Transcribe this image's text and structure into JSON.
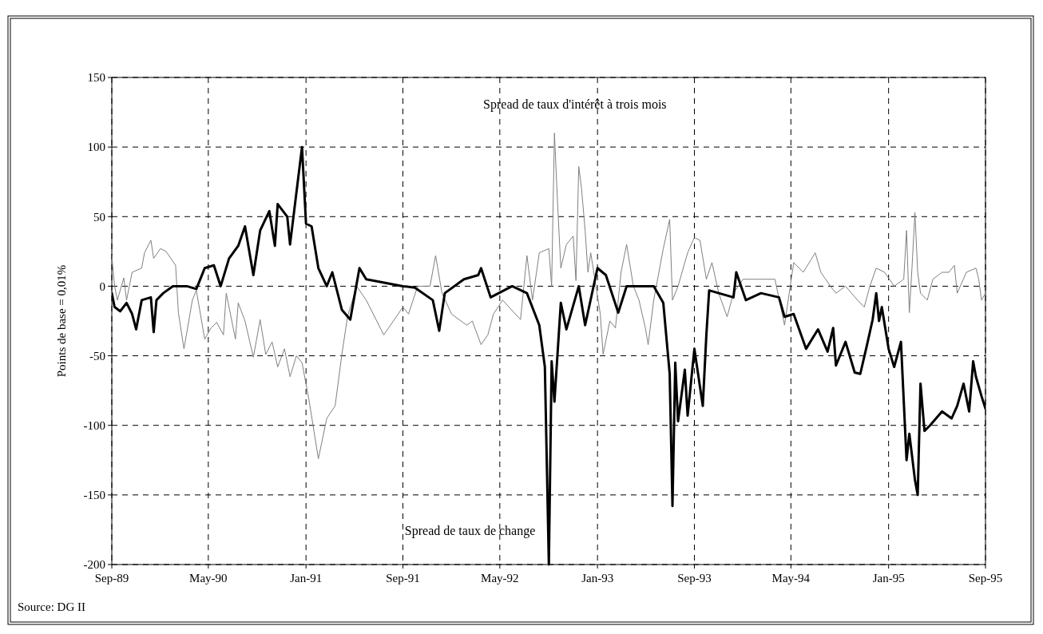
{
  "chart_data": {
    "type": "line",
    "ylabel": "Points de base = 0,01%",
    "annotations": [
      "Source: DG II"
    ],
    "xlim": [
      "1989-09-01",
      "1995-09-01"
    ],
    "xticks": [
      {
        "value": "1989-09-01",
        "label": "Sep-89"
      },
      {
        "value": "1990-05-01",
        "label": "May-90"
      },
      {
        "value": "1991-01-01",
        "label": "Jan-91"
      },
      {
        "value": "1991-09-01",
        "label": "Sep-91"
      },
      {
        "value": "1992-05-01",
        "label": "May-92"
      },
      {
        "value": "1993-01-01",
        "label": "Jan-93"
      },
      {
        "value": "1993-09-01",
        "label": "Sep-93"
      },
      {
        "value": "1994-05-01",
        "label": "May-94"
      },
      {
        "value": "1995-01-01",
        "label": "Jan-95"
      },
      {
        "value": "1995-09-01",
        "label": "Sep-95"
      }
    ],
    "ylim": [
      -200,
      150
    ],
    "yticks": [
      -200,
      -150,
      -100,
      -50,
      0,
      50,
      100,
      150
    ],
    "grid": true,
    "line_style": "solid",
    "series": [
      {
        "name": "Spread de taux d'intérêt à trois mois",
        "color": "#808080",
        "x": [
          "1989-09-01",
          "1989-09-08",
          "1989-09-15",
          "1989-10-01",
          "1989-10-08",
          "1989-10-22",
          "1989-11-15",
          "1989-11-22",
          "1989-12-08",
          "1989-12-15",
          "1990-01-01",
          "1990-01-15",
          "1990-02-08",
          "1990-02-15",
          "1990-03-01",
          "1990-03-22",
          "1990-04-01",
          "1990-04-22",
          "1990-05-08",
          "1990-05-22",
          "1990-06-08",
          "1990-06-15",
          "1990-07-08",
          "1990-07-15",
          "1990-08-01",
          "1990-08-22",
          "1990-09-08",
          "1990-09-22",
          "1990-10-08",
          "1990-10-22",
          "1990-11-08",
          "1990-11-22",
          "1990-12-08",
          "1990-12-22",
          "1991-01-08",
          "1991-01-22",
          "1991-02-01",
          "1991-02-22",
          "1991-03-15",
          "1991-04-01",
          "1991-04-15",
          "1991-05-08",
          "1991-06-01",
          "1991-07-08",
          "1991-07-15",
          "1991-08-08",
          "1991-09-01",
          "1991-09-15",
          "1991-10-08",
          "1991-11-08",
          "1991-11-22",
          "1991-12-08",
          "1992-01-01",
          "1992-02-08",
          "1992-02-22",
          "1992-03-15",
          "1992-04-01",
          "1992-04-15",
          "1992-05-08",
          "1992-06-22",
          "1992-07-08",
          "1992-07-22",
          "1992-08-08",
          "1992-09-01",
          "1992-09-08",
          "1992-09-15",
          "1992-09-22",
          "1992-10-01",
          "1992-10-15",
          "1992-11-01",
          "1992-11-08",
          "1992-11-15",
          "1992-11-22",
          "1992-12-01",
          "1992-12-08",
          "1992-12-15",
          "1993-01-08",
          "1993-01-15",
          "1993-02-01",
          "1993-02-15",
          "1993-03-01",
          "1993-03-15",
          "1993-04-01",
          "1993-04-15",
          "1993-05-01",
          "1993-05-08",
          "1993-05-22",
          "1993-06-15",
          "1993-07-01",
          "1993-07-08",
          "1993-07-22",
          "1993-08-15",
          "1993-09-01",
          "1993-09-15",
          "1993-10-01",
          "1993-10-15",
          "1993-11-01",
          "1993-11-22",
          "1993-12-08",
          "1994-01-01",
          "1994-02-08",
          "1994-03-22",
          "1994-04-15",
          "1994-05-08",
          "1994-06-01",
          "1994-07-01",
          "1994-07-15",
          "1994-08-08",
          "1994-08-22",
          "1994-09-15",
          "1994-10-15",
          "1994-11-01",
          "1994-11-15",
          "1994-12-01",
          "1994-12-22",
          "1995-01-15",
          "1995-02-08",
          "1995-02-15",
          "1995-02-22",
          "1995-03-01",
          "1995-03-08",
          "1995-03-15",
          "1995-03-22",
          "1995-04-08",
          "1995-04-22",
          "1995-05-15",
          "1995-06-01",
          "1995-06-15",
          "1995-06-22",
          "1995-07-15",
          "1995-08-08",
          "1995-08-15",
          "1995-08-22",
          "1995-09-01"
        ],
        "values": [
          22,
          0,
          -10,
          6,
          -10,
          10,
          13,
          24,
          33,
          20,
          27,
          25,
          15,
          -19,
          -45,
          -10,
          -3,
          -38,
          -30,
          -26,
          -35,
          -5,
          -38,
          -12,
          -25,
          -51,
          -24,
          -49,
          -40,
          -58,
          -45,
          -65,
          -50,
          -55,
          -81,
          -106,
          -124,
          -95,
          -86,
          -49,
          -22,
          0,
          -10,
          -31,
          -35,
          -25,
          -15,
          -20,
          0,
          0,
          22,
          -5,
          -20,
          -28,
          -25,
          -42,
          -35,
          -20,
          -10,
          -24,
          22,
          -10,
          24,
          27,
          0,
          110,
          65,
          13,
          30,
          36,
          4,
          86,
          70,
          40,
          10,
          24,
          -20,
          -49,
          -25,
          -30,
          10,
          30,
          0,
          -10,
          -30,
          -42,
          -10,
          27,
          48,
          -10,
          0,
          24,
          35,
          33,
          5,
          17,
          -5,
          -22,
          -5,
          5,
          5,
          5,
          -28,
          17,
          10,
          24,
          10,
          0,
          -5,
          0,
          -10,
          -15,
          0,
          13,
          10,
          0,
          5,
          40,
          -19,
          15,
          53,
          10,
          -5,
          -10,
          5,
          10,
          10,
          15,
          -5,
          10,
          13,
          5,
          -10,
          -5
        ]
      },
      {
        "name": "Spread de taux de change",
        "color": "#000000",
        "x": [
          "1989-09-01",
          "1989-09-08",
          "1989-09-22",
          "1989-10-08",
          "1989-10-22",
          "1989-11-01",
          "1989-11-15",
          "1989-12-08",
          "1989-12-15",
          "1989-12-22",
          "1990-01-08",
          "1990-02-01",
          "1990-03-08",
          "1990-04-01",
          "1990-04-22",
          "1990-05-15",
          "1990-06-01",
          "1990-06-22",
          "1990-07-15",
          "1990-08-01",
          "1990-08-22",
          "1990-09-08",
          "1990-10-01",
          "1990-10-15",
          "1990-10-22",
          "1990-11-15",
          "1990-11-22",
          "1990-12-22",
          "1991-01-01",
          "1991-01-15",
          "1991-02-01",
          "1991-02-22",
          "1991-03-08",
          "1991-04-01",
          "1991-04-22",
          "1991-05-15",
          "1991-06-01",
          "1991-07-08",
          "1991-09-01",
          "1991-10-01",
          "1991-11-15",
          "1991-12-01",
          "1991-12-15",
          "1992-02-01",
          "1992-03-08",
          "1992-03-15",
          "1992-04-08",
          "1992-06-01",
          "1992-07-08",
          "1992-08-08",
          "1992-08-22",
          "1992-09-01",
          "1992-09-08",
          "1992-09-15",
          "1992-10-01",
          "1992-10-15",
          "1992-11-15",
          "1992-12-01",
          "1993-01-01",
          "1993-01-22",
          "1993-02-22",
          "1993-03-15",
          "1993-04-15",
          "1993-05-22",
          "1993-06-15",
          "1993-07-01",
          "1993-07-08",
          "1993-07-15",
          "1993-07-22",
          "1993-08-08",
          "1993-08-15",
          "1993-09-01",
          "1993-09-22",
          "1993-10-01",
          "1993-10-08",
          "1993-11-01",
          "1993-12-08",
          "1993-12-15",
          "1994-01-08",
          "1994-02-15",
          "1994-04-01",
          "1994-04-15",
          "1994-05-08",
          "1994-06-08",
          "1994-07-08",
          "1994-08-01",
          "1994-08-15",
          "1994-08-22",
          "1994-09-15",
          "1994-10-08",
          "1994-10-22",
          "1994-11-08",
          "1994-11-22",
          "1994-12-01",
          "1994-12-08",
          "1994-12-15",
          "1995-01-01",
          "1995-01-15",
          "1995-02-01",
          "1995-02-15",
          "1995-02-22",
          "1995-03-08",
          "1995-03-15",
          "1995-03-22",
          "1995-04-01",
          "1995-04-15",
          "1995-05-15",
          "1995-06-08",
          "1995-06-22",
          "1995-07-08",
          "1995-07-22",
          "1995-08-01",
          "1995-08-08",
          "1995-08-22",
          "1995-09-01"
        ],
        "values": [
          -5,
          -15,
          -18,
          -12,
          -20,
          -31,
          -10,
          -8,
          -33,
          -10,
          -5,
          0,
          0,
          -2,
          13,
          15,
          0,
          20,
          29,
          43,
          8,
          40,
          54,
          29,
          59,
          50,
          30,
          100,
          45,
          43,
          13,
          0,
          10,
          -17,
          -24,
          13,
          5,
          3,
          0,
          -1,
          -10,
          -32,
          -5,
          5,
          8,
          13,
          -8,
          0,
          -5,
          -28,
          -58,
          -200,
          -54,
          -83,
          -12,
          -31,
          0,
          -28,
          13,
          8,
          -19,
          0,
          0,
          0,
          -12,
          -63,
          -158,
          -55,
          -97,
          -60,
          -93,
          -45,
          -86,
          -35,
          -3,
          -5,
          -8,
          10,
          -10,
          -5,
          -8,
          -22,
          -20,
          -45,
          -31,
          -47,
          -30,
          -57,
          -40,
          -62,
          -63,
          -42,
          -24,
          -5,
          -25,
          -15,
          -45,
          -58,
          -40,
          -125,
          -106,
          -139,
          -150,
          -70,
          -104,
          -100,
          -90,
          -95,
          -86,
          -70,
          -90,
          -54,
          -65,
          -79,
          -88
        ]
      }
    ]
  }
}
